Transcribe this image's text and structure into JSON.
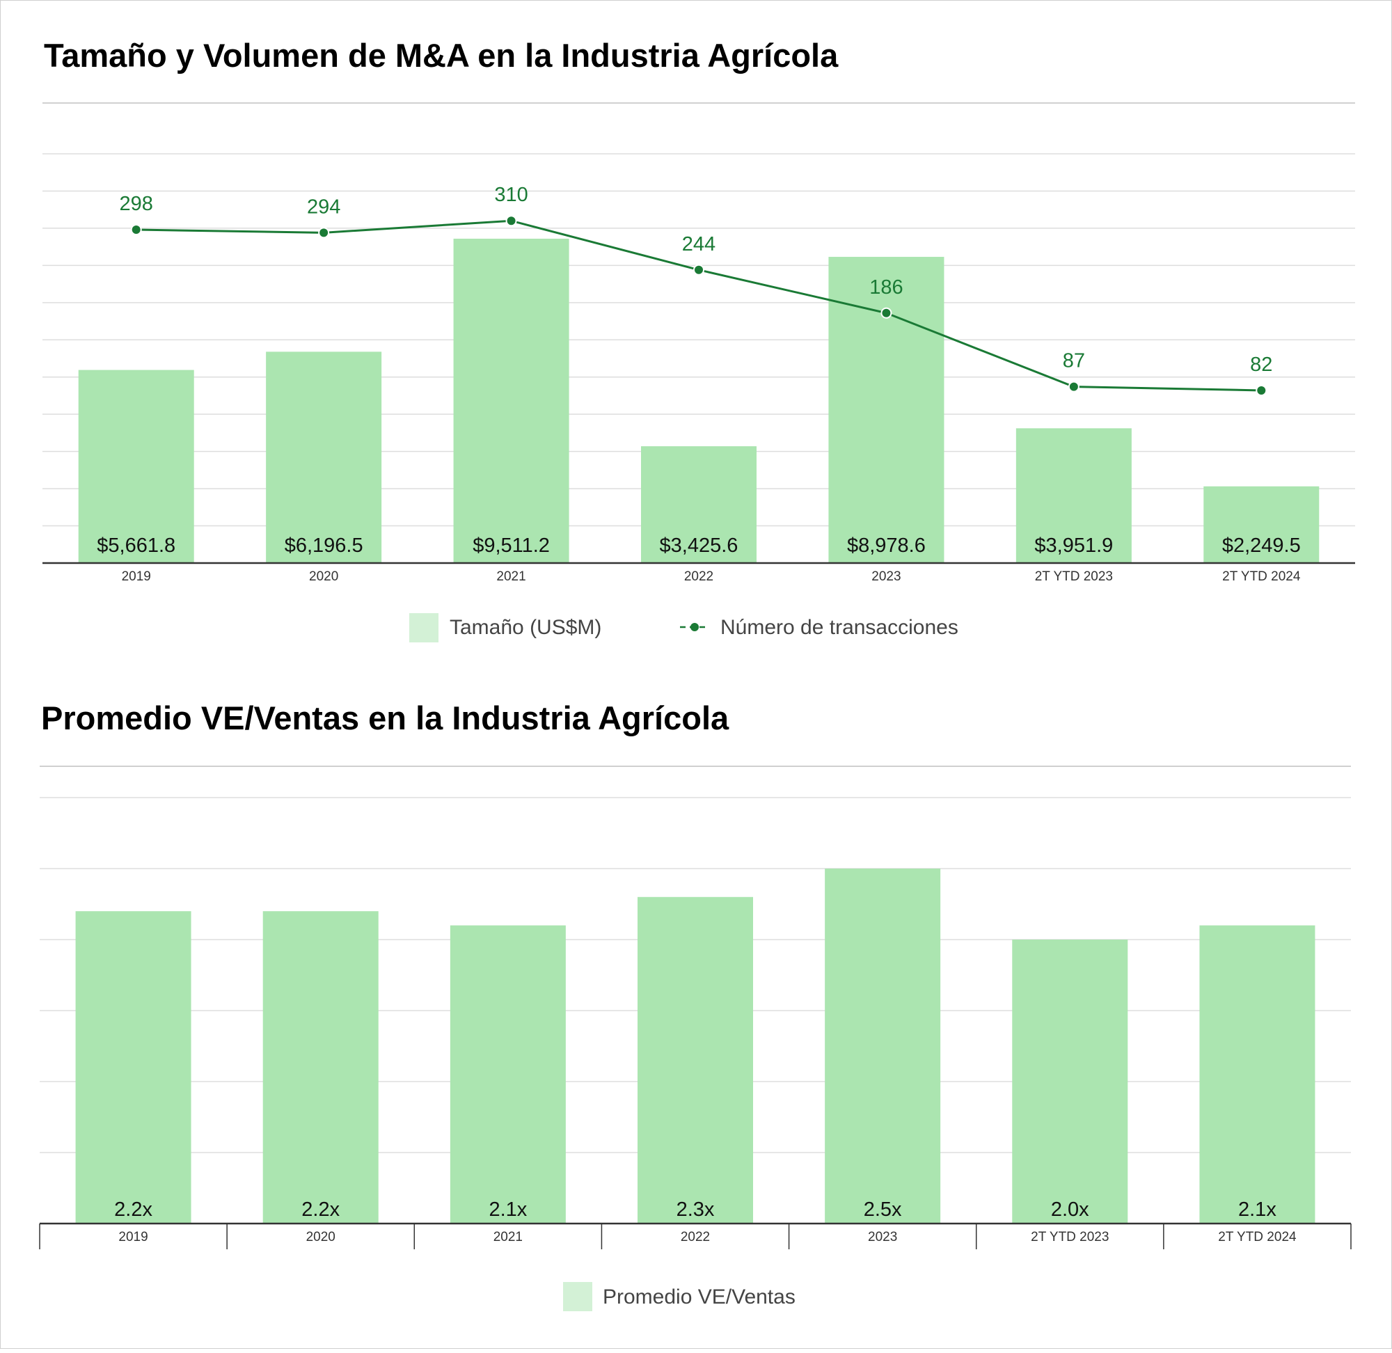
{
  "colors": {
    "bar": "#abe5b0",
    "legend_swatch": "#d3f1d6",
    "line": "#1a7a35",
    "grid": "#dddddd"
  },
  "chart_data": [
    {
      "type": "bar",
      "title": "Tamaño y Volumen de M&A en la Industria Agrícola",
      "categories": [
        "2019",
        "2020",
        "2021",
        "2022",
        "2023",
        "2T YTD 2023",
        "2T YTD 2024"
      ],
      "series": [
        {
          "name": "Tamaño (US$M)",
          "type": "bar",
          "values": [
            5661.8,
            6196.5,
            9511.2,
            3425.6,
            8978.6,
            3951.9,
            2249.5
          ],
          "labels": [
            "$5,661.8",
            "$6,196.5",
            "$9,511.2",
            "$3,425.6",
            "$8,978.6",
            "$3,951.9",
            "$2,249.5"
          ]
        },
        {
          "name": "Número de transacciones",
          "type": "line",
          "values": [
            298,
            294,
            310,
            244,
            186,
            87,
            82
          ],
          "labels": [
            "298",
            "294",
            "310",
            "244",
            "186",
            "87",
            "82"
          ]
        }
      ],
      "ylim": [
        0,
        12000
      ],
      "y2lim": [
        -150,
        400
      ],
      "grid": true,
      "legend": "bottom-center"
    },
    {
      "type": "bar",
      "title": "Promedio VE/Ventas en la Industria Agrícola",
      "categories": [
        "2019",
        "2020",
        "2021",
        "2022",
        "2023",
        "2T YTD 2023",
        "2T YTD 2024"
      ],
      "series": [
        {
          "name": "Promedio VE/Ventas",
          "values": [
            2.2,
            2.2,
            2.1,
            2.3,
            2.5,
            2.0,
            2.1
          ],
          "labels": [
            "2.2x",
            "2.2x",
            "2.1x",
            "2.3x",
            "2.5x",
            "2.0x",
            "2.1x"
          ]
        }
      ],
      "ylim": [
        0,
        3.0
      ],
      "grid": true,
      "legend": "bottom-center"
    }
  ]
}
